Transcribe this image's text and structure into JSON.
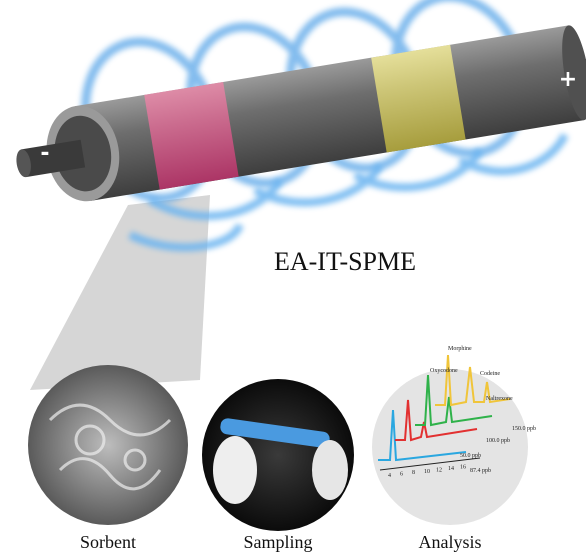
{
  "title": "EA-IT-SPME",
  "electrodes": {
    "negative": "-",
    "positive": "+"
  },
  "steps": [
    "Sorbent",
    "Sampling",
    "Analysis"
  ],
  "chromatogram": {
    "peaks": [
      "Morphine",
      "Oxycodone",
      "Codeine",
      "Naltrexone"
    ],
    "traces": [
      "150.0 ppb",
      "100.0 ppb",
      "50.0 ppb",
      "87.4 ppb"
    ],
    "xticks": [
      "4",
      "6",
      "8",
      "10",
      "12",
      "14",
      "16"
    ]
  }
}
